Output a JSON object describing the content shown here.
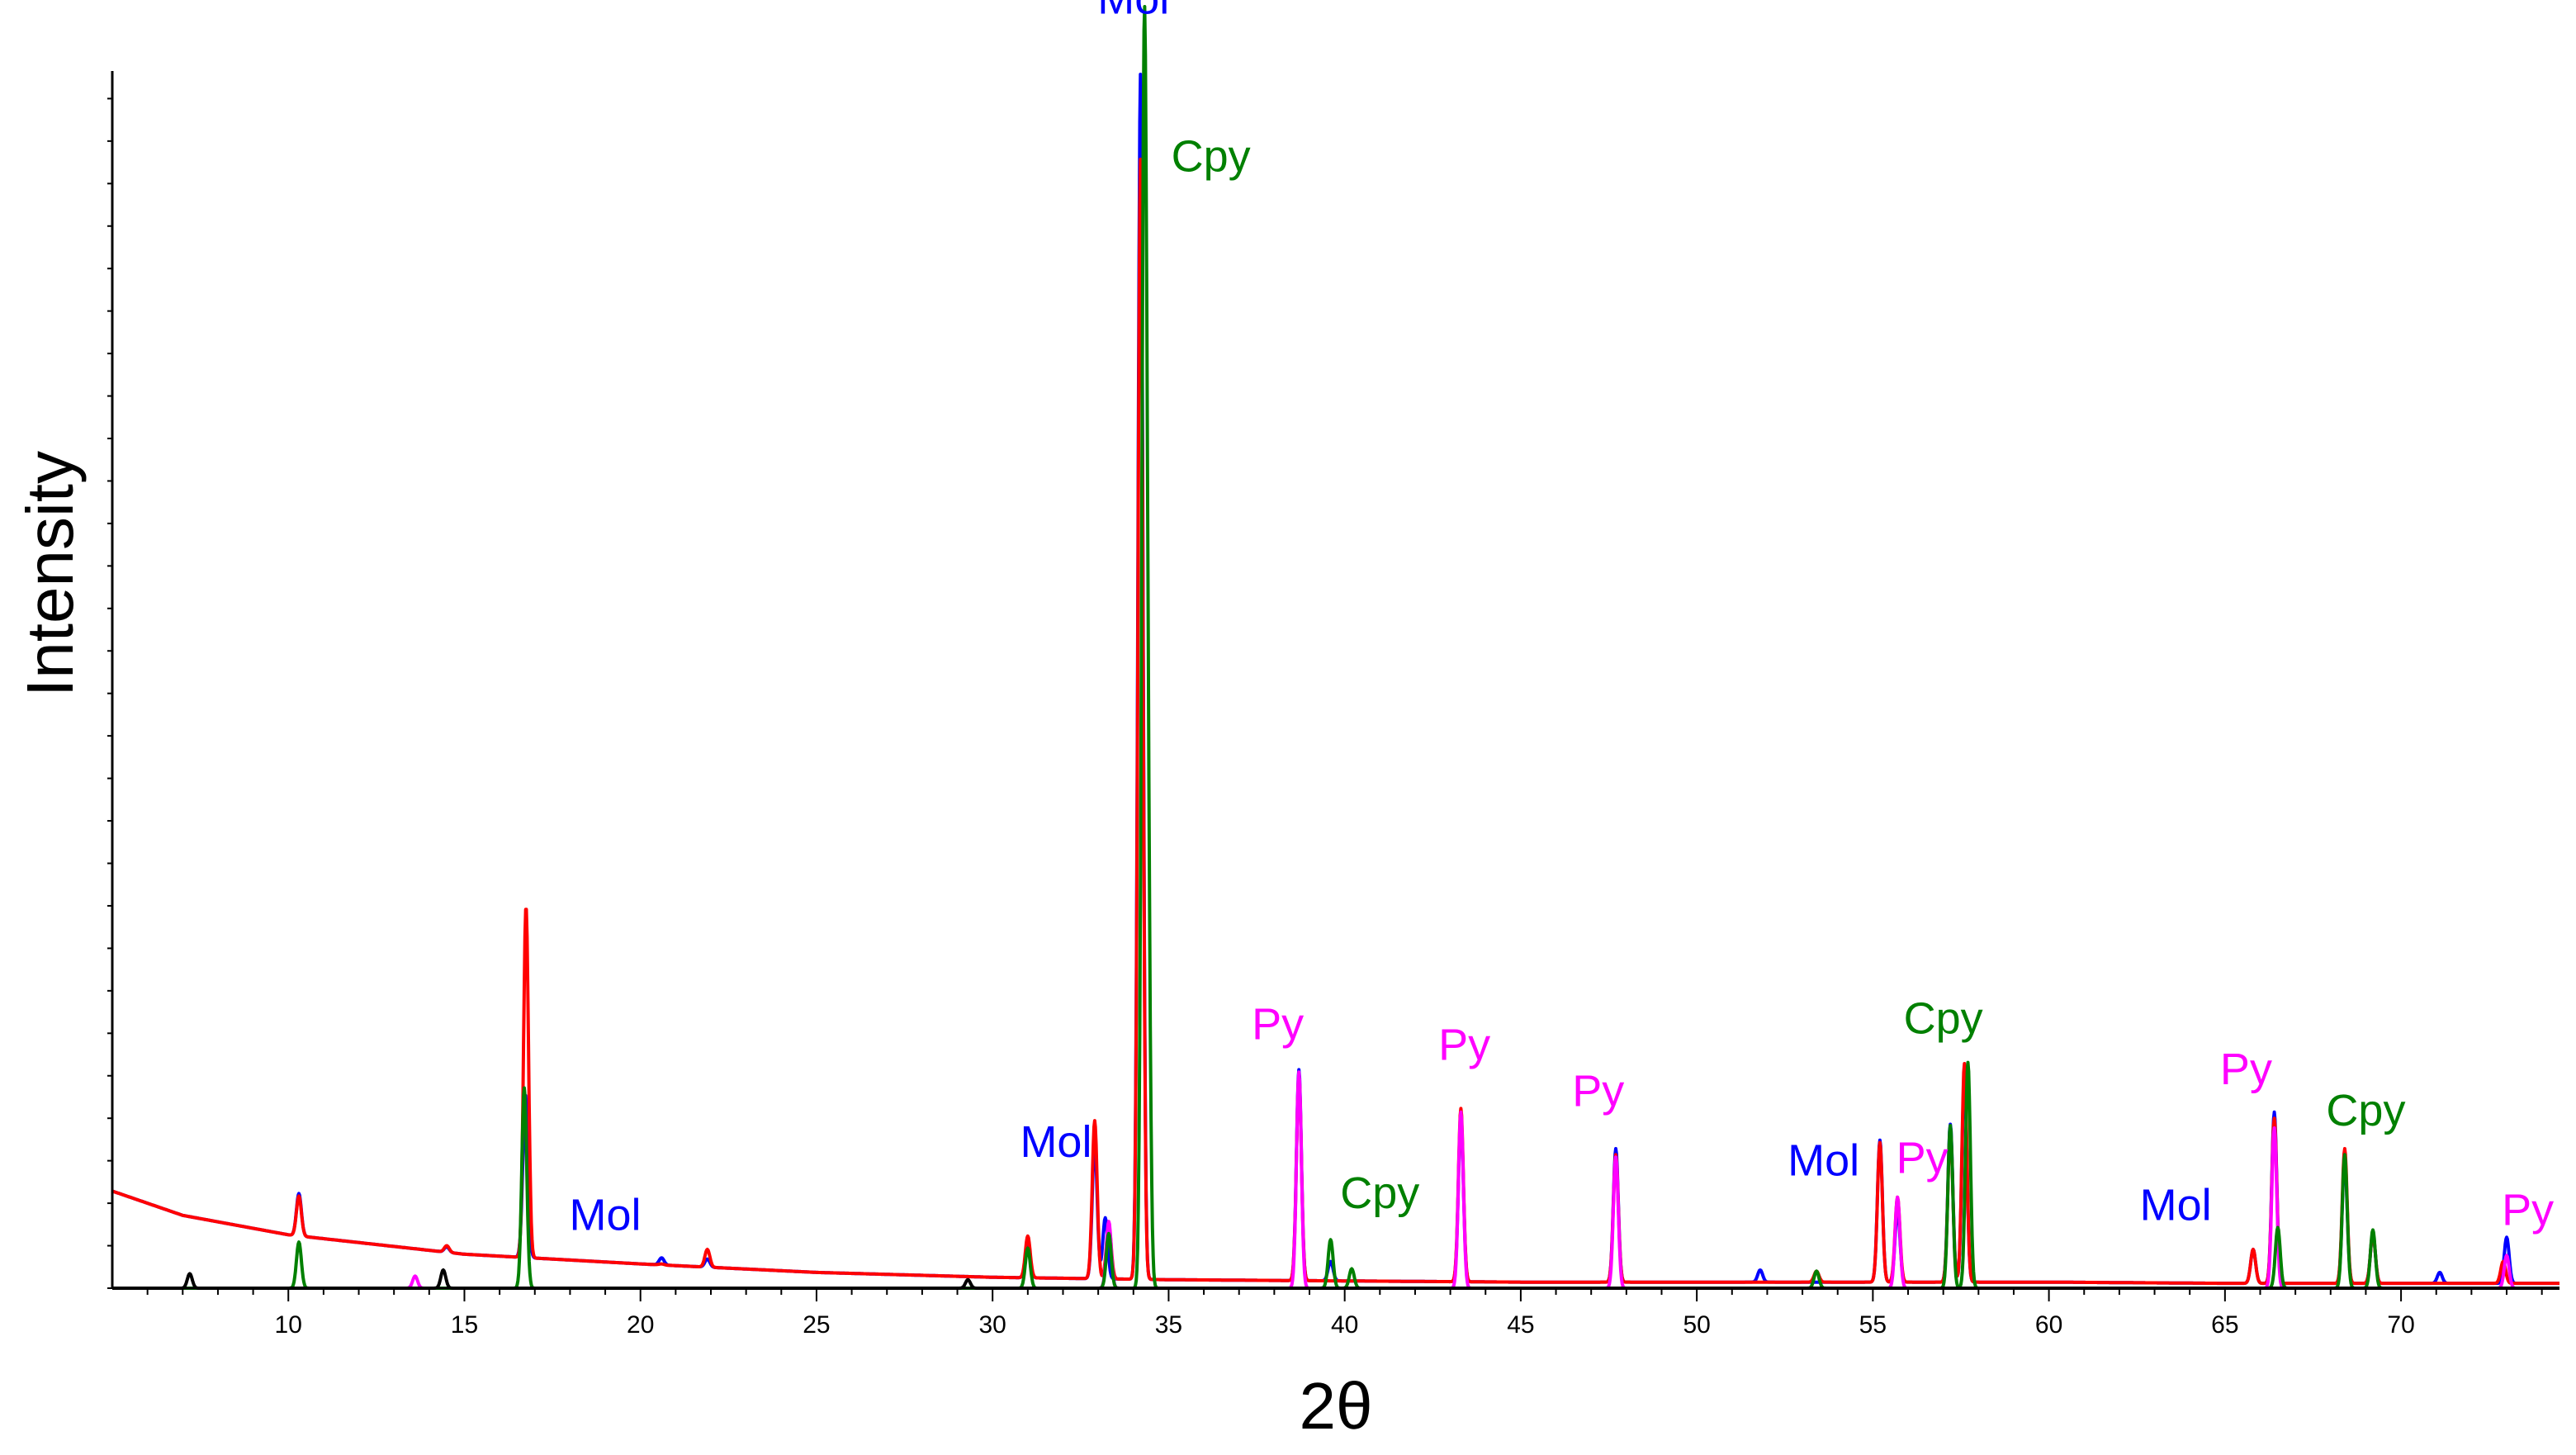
{
  "chart_data": {
    "type": "line",
    "title": "",
    "xlabel": "2θ",
    "ylabel": "Intensity",
    "xlim": [
      5,
      74.5
    ],
    "ylim": [
      0,
      100
    ],
    "xticks": [
      10,
      15,
      20,
      25,
      30,
      35,
      40,
      45,
      50,
      55,
      60,
      65,
      70
    ],
    "x_tick_labels": [
      "10",
      "15",
      "20",
      "25",
      "30",
      "35",
      "40",
      "45",
      "50",
      "55",
      "60",
      "65",
      "70"
    ],
    "grid": false,
    "legend": "none",
    "baseline": {
      "x": [
        5,
        7,
        10,
        15,
        20,
        25,
        30,
        35,
        40,
        45,
        50,
        55,
        60,
        65,
        70,
        74.5
      ],
      "y": [
        8.0,
        6.0,
        4.4,
        2.8,
        2.0,
        1.3,
        0.9,
        0.7,
        0.6,
        0.5,
        0.5,
        0.5,
        0.5,
        0.4,
        0.4,
        0.4
      ]
    },
    "series": [
      {
        "color": "#0000FF",
        "peaks": [
          [
            10.3,
            7.8
          ],
          [
            14.5,
            3.4
          ],
          [
            16.7,
            7.2
          ],
          [
            16.75,
            12.0
          ],
          [
            20.6,
            2.5
          ],
          [
            21.9,
            2.4
          ],
          [
            31.0,
            3.5
          ],
          [
            32.9,
            12.0
          ],
          [
            33.2,
            5.8
          ],
          [
            34.2,
            100
          ],
          [
            38.7,
            18.0
          ],
          [
            39.6,
            2.2
          ],
          [
            43.3,
            14.0
          ],
          [
            47.7,
            11.5
          ],
          [
            51.8,
            1.5
          ],
          [
            55.2,
            12.2
          ],
          [
            55.7,
            6.5
          ],
          [
            57.2,
            13.5
          ],
          [
            57.6,
            17.5
          ],
          [
            65.8,
            3.2
          ],
          [
            66.4,
            14.5
          ],
          [
            68.4,
            10.6
          ],
          [
            69.2,
            4.5
          ],
          [
            71.1,
            1.3
          ],
          [
            73.0,
            4.2
          ]
        ]
      },
      {
        "color": "#FF0000",
        "peaks": [
          [
            10.3,
            7.6
          ],
          [
            14.5,
            3.5
          ],
          [
            16.75,
            31.5
          ],
          [
            20.6,
            2.0
          ],
          [
            21.9,
            3.2
          ],
          [
            31.0,
            4.3
          ],
          [
            32.9,
            13.8
          ],
          [
            33.3,
            5.2
          ],
          [
            34.2,
            93
          ],
          [
            38.7,
            17.5
          ],
          [
            43.3,
            14.8
          ],
          [
            47.7,
            11.0
          ],
          [
            53.4,
            1.4
          ],
          [
            55.2,
            12.0
          ],
          [
            55.7,
            7.5
          ],
          [
            57.2,
            13.0
          ],
          [
            57.6,
            18.5
          ],
          [
            65.8,
            3.2
          ],
          [
            66.4,
            14.0
          ],
          [
            68.4,
            11.5
          ],
          [
            69.2,
            4.5
          ],
          [
            72.9,
            2.2
          ]
        ]
      },
      {
        "color": "#FF00FF",
        "peaks": [
          [
            13.6,
            1.0
          ],
          [
            33.3,
            5.5
          ],
          [
            38.7,
            17.8
          ],
          [
            43.3,
            14.5
          ],
          [
            47.7,
            10.8
          ],
          [
            55.7,
            7.5
          ],
          [
            66.4,
            13.2
          ],
          [
            73.0,
            2.7
          ]
        ]
      },
      {
        "color": "#008000",
        "peaks": [
          [
            10.3,
            3.8
          ],
          [
            16.7,
            16.5
          ],
          [
            31.0,
            3.3
          ],
          [
            33.3,
            4.5
          ],
          [
            34.3,
            91
          ],
          [
            34.4,
            35
          ],
          [
            39.6,
            4.0
          ],
          [
            40.2,
            1.6
          ],
          [
            53.4,
            1.4
          ],
          [
            57.2,
            13.4
          ],
          [
            57.7,
            18.6
          ],
          [
            66.5,
            5.0
          ],
          [
            68.4,
            11.0
          ],
          [
            69.2,
            4.8
          ]
        ]
      },
      {
        "color": "#000000",
        "peaks": [
          [
            7.2,
            1.2
          ],
          [
            14.4,
            1.5
          ],
          [
            29.3,
            0.7
          ]
        ]
      }
    ],
    "annotations": [
      {
        "text": "Mol",
        "color": "#0000FF",
        "x": 34.0,
        "y": 105
      },
      {
        "text": "Cpy",
        "color": "#008000",
        "x": 36.2,
        "y": 92
      },
      {
        "text": "Mol",
        "color": "#0000FF",
        "x": 19.0,
        "y": 4.8
      },
      {
        "text": "Mol",
        "color": "#0000FF",
        "x": 31.8,
        "y": 10.8
      },
      {
        "text": "Py",
        "color": "#FF00FF",
        "x": 38.1,
        "y": 20.5
      },
      {
        "text": "Cpy",
        "color": "#008000",
        "x": 41.0,
        "y": 6.6
      },
      {
        "text": "Py",
        "color": "#FF00FF",
        "x": 43.4,
        "y": 18.8
      },
      {
        "text": "Py",
        "color": "#FF00FF",
        "x": 47.2,
        "y": 15.0
      },
      {
        "text": "Mol",
        "color": "#0000FF",
        "x": 53.6,
        "y": 9.3
      },
      {
        "text": "Py",
        "color": "#FF00FF",
        "x": 56.4,
        "y": 9.5
      },
      {
        "text": "Cpy",
        "color": "#008000",
        "x": 57.0,
        "y": 21.0
      },
      {
        "text": "Mol",
        "color": "#0000FF",
        "x": 63.6,
        "y": 5.6
      },
      {
        "text": "Py",
        "color": "#FF00FF",
        "x": 65.6,
        "y": 16.8
      },
      {
        "text": "Cpy",
        "color": "#008000",
        "x": 69.0,
        "y": 13.4
      },
      {
        "text": "Py",
        "color": "#FF00FF",
        "x": 73.6,
        "y": 5.2
      }
    ]
  }
}
